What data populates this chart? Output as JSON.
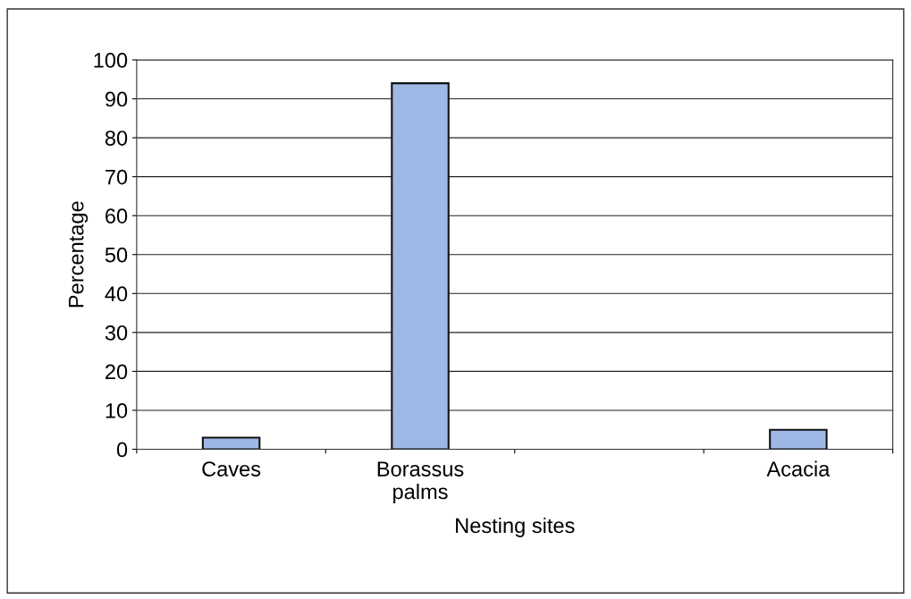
{
  "chart_data": {
    "type": "bar",
    "xlabel": "Nesting sites",
    "ylabel": "Percentage",
    "categories": [
      "Caves",
      "Borassus\npalms",
      null,
      "Acacia"
    ],
    "values": [
      3,
      94,
      null,
      5
    ],
    "color": "#9db8e4",
    "ylim": [
      0,
      100
    ],
    "yticks": [
      0,
      10,
      20,
      30,
      40,
      50,
      60,
      70,
      80,
      90,
      100
    ],
    "grid": "y",
    "legend": false
  }
}
